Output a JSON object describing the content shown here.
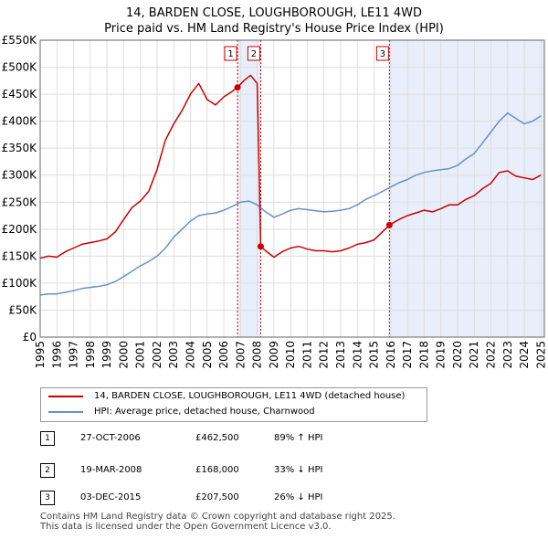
{
  "title_line1": "14, BARDEN CLOSE, LOUGHBOROUGH, LE11 4WD",
  "title_line2": "Price paid vs. HM Land Registry's House Price Index (HPI)",
  "colors": {
    "property": "#cc0000",
    "hpi": "#6a8fcc",
    "shade": "#e8eefa",
    "vline": "#cc0000"
  },
  "legend": {
    "property": "14, BARDEN CLOSE, LOUGHBOROUGH, LE11 4WD (detached house)",
    "hpi": "HPI: Average price, detached house, Charnwood"
  },
  "transactions": [
    {
      "num": "1",
      "date": "27-OCT-2006",
      "price": "£462,500",
      "hpi": "89% ↑ HPI"
    },
    {
      "num": "2",
      "date": "19-MAR-2008",
      "price": "£168,000",
      "hpi": "33% ↓ HPI"
    },
    {
      "num": "3",
      "date": "03-DEC-2015",
      "price": "£207,500",
      "hpi": "26% ↓ HPI"
    }
  ],
  "footer_line1": "Contains HM Land Registry data © Crown copyright and database right 2025.",
  "footer_line2": "This data is licensed under the Open Government Licence v3.0.",
  "chart_data": {
    "type": "line",
    "xlim": [
      1995,
      2025.2
    ],
    "ylim": [
      0,
      550000
    ],
    "yticks": [
      0,
      50000,
      100000,
      150000,
      200000,
      250000,
      300000,
      350000,
      400000,
      450000,
      500000,
      550000
    ],
    "ytick_labels": [
      "£0",
      "£50K",
      "£100K",
      "£150K",
      "£200K",
      "£250K",
      "£300K",
      "£350K",
      "£400K",
      "£450K",
      "£500K",
      "£550K"
    ],
    "xticks": [
      1995,
      1996,
      1997,
      1998,
      1999,
      2000,
      2001,
      2002,
      2003,
      2004,
      2005,
      2006,
      2007,
      2008,
      2009,
      2010,
      2011,
      2012,
      2013,
      2014,
      2015,
      2016,
      2017,
      2018,
      2019,
      2020,
      2021,
      2022,
      2023,
      2024,
      2025
    ],
    "xtick_labels": [
      "1995",
      "1996",
      "1997",
      "1998",
      "1999",
      "2000",
      "2001",
      "2002",
      "2003",
      "2004",
      "2005",
      "2006",
      "2007",
      "2008",
      "2009",
      "2010",
      "2011",
      "2012",
      "2013",
      "2014",
      "2015",
      "2016",
      "2017",
      "2018",
      "2019",
      "2020",
      "2021",
      "2022",
      "2023",
      "2024",
      "2025"
    ],
    "grid": true,
    "shaded_ranges": [
      [
        2006.82,
        2008.21
      ],
      [
        2015.92,
        2025.2
      ]
    ],
    "markers": [
      {
        "label": "1",
        "x": 2006.82,
        "y": 462500
      },
      {
        "label": "2",
        "x": 2008.21,
        "y": 168000
      },
      {
        "label": "3",
        "x": 2015.92,
        "y": 207500
      }
    ],
    "series": [
      {
        "name": "14, BARDEN CLOSE, LOUGHBOROUGH, LE11 4WD (detached house)",
        "color": "#cc0000",
        "x": [
          1995.0,
          1995.5,
          1996.0,
          1996.5,
          1997.0,
          1997.5,
          1998.0,
          1998.5,
          1999.0,
          1999.5,
          2000.0,
          2000.5,
          2001.0,
          2001.5,
          2002.0,
          2002.5,
          2003.0,
          2003.5,
          2004.0,
          2004.5,
          2005.0,
          2005.5,
          2006.0,
          2006.5,
          2006.82,
          2007.2,
          2007.6,
          2008.0,
          2008.21,
          2008.5,
          2009.0,
          2009.5,
          2010.0,
          2010.5,
          2011.0,
          2011.5,
          2012.0,
          2012.5,
          2013.0,
          2013.5,
          2014.0,
          2014.5,
          2015.0,
          2015.5,
          2015.92,
          2016.5,
          2017.0,
          2017.5,
          2018.0,
          2018.5,
          2019.0,
          2019.5,
          2020.0,
          2020.5,
          2021.0,
          2021.5,
          2022.0,
          2022.5,
          2023.0,
          2023.5,
          2024.0,
          2024.5,
          2025.0
        ],
        "values": [
          146000,
          150000,
          148000,
          158000,
          165000,
          172000,
          175000,
          178000,
          182000,
          195000,
          218000,
          240000,
          252000,
          270000,
          310000,
          365000,
          395000,
          420000,
          450000,
          470000,
          440000,
          430000,
          445000,
          455000,
          462500,
          475000,
          485000,
          470000,
          168000,
          160000,
          148000,
          158000,
          165000,
          168000,
          163000,
          160000,
          160000,
          158000,
          160000,
          165000,
          172000,
          175000,
          180000,
          195000,
          207500,
          218000,
          225000,
          230000,
          235000,
          232000,
          238000,
          245000,
          245000,
          255000,
          262000,
          275000,
          285000,
          305000,
          308000,
          298000,
          295000,
          292000,
          300000
        ]
      },
      {
        "name": "HPI: Average price, detached house, Charnwood",
        "color": "#6a8fcc",
        "x": [
          1995.0,
          1995.5,
          1996.0,
          1996.5,
          1997.0,
          1997.5,
          1998.0,
          1998.5,
          1999.0,
          1999.5,
          2000.0,
          2000.5,
          2001.0,
          2001.5,
          2002.0,
          2002.5,
          2003.0,
          2003.5,
          2004.0,
          2004.5,
          2005.0,
          2005.5,
          2006.0,
          2006.5,
          2007.0,
          2007.5,
          2008.0,
          2008.5,
          2009.0,
          2009.5,
          2010.0,
          2010.5,
          2011.0,
          2011.5,
          2012.0,
          2012.5,
          2013.0,
          2013.5,
          2014.0,
          2014.5,
          2015.0,
          2015.5,
          2016.0,
          2016.5,
          2017.0,
          2017.5,
          2018.0,
          2018.5,
          2019.0,
          2019.5,
          2020.0,
          2020.5,
          2021.0,
          2021.5,
          2022.0,
          2022.5,
          2023.0,
          2023.5,
          2024.0,
          2024.5,
          2025.0
        ],
        "values": [
          78000,
          80000,
          80000,
          83000,
          86000,
          90000,
          92000,
          94000,
          97000,
          103000,
          112000,
          122000,
          132000,
          140000,
          150000,
          165000,
          185000,
          200000,
          215000,
          225000,
          228000,
          230000,
          235000,
          242000,
          250000,
          252000,
          245000,
          232000,
          222000,
          228000,
          235000,
          238000,
          236000,
          234000,
          232000,
          233000,
          235000,
          238000,
          245000,
          255000,
          262000,
          270000,
          278000,
          286000,
          292000,
          300000,
          305000,
          308000,
          310000,
          312000,
          318000,
          330000,
          340000,
          360000,
          380000,
          400000,
          415000,
          405000,
          395000,
          400000,
          410000
        ]
      }
    ]
  }
}
